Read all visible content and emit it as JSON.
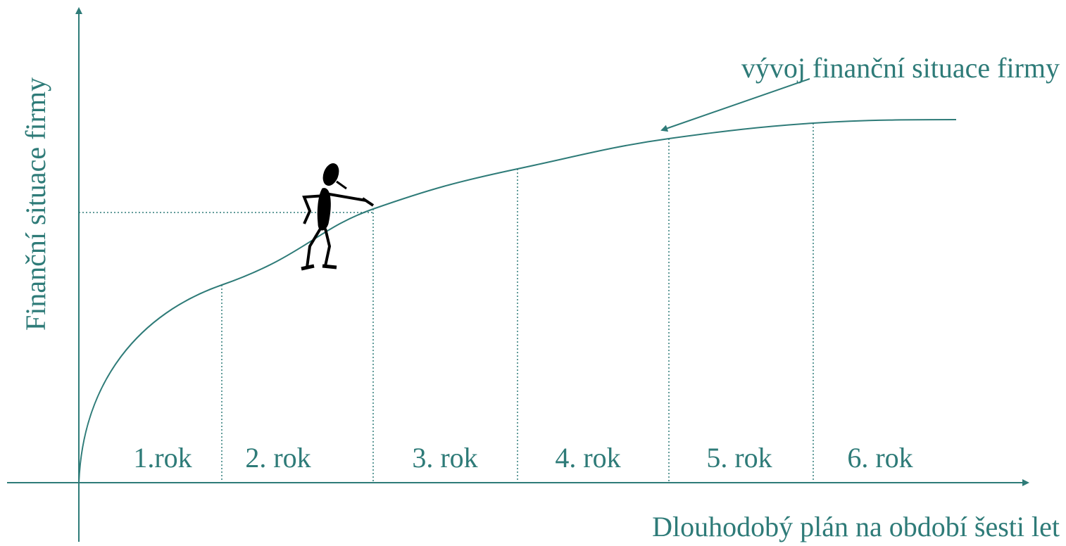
{
  "y_axis_label": "Finanční situace firmy",
  "x_axis_label": "Dlouhodobý plán na období šesti let",
  "curve_label": "vývoj finanční situace firmy",
  "periods": [
    "1.rok",
    "2. rok",
    "3. rok",
    "4. rok",
    "5. rok",
    "6. rok"
  ]
}
